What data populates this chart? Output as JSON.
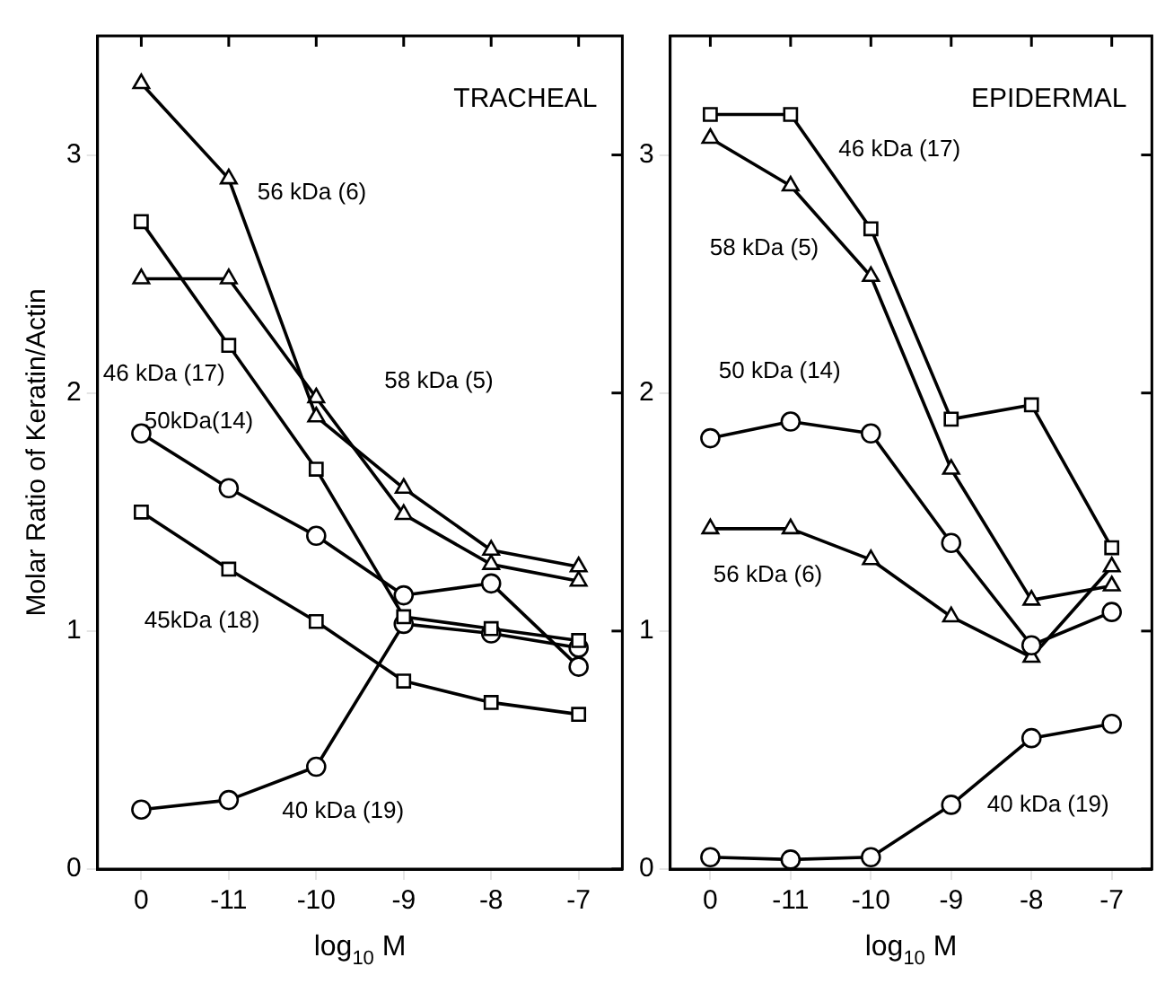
{
  "chart_data": [
    {
      "type": "line",
      "title": "TRACHEAL",
      "xlabel": "log$_{10}$ M",
      "ylabel": "Molar Ratio of Keratin/Actin",
      "categories": [
        "0",
        "-11",
        "-10",
        "-9",
        "-8",
        "-7"
      ],
      "ylim": [
        0,
        3.5
      ],
      "yticks": [
        0,
        1,
        2,
        3
      ],
      "grid": false,
      "legend": false,
      "series": [
        {
          "name": "56 kDa (6)",
          "color": "#000000",
          "marker": "triangle",
          "values": [
            3.3,
            2.9,
            1.9,
            1.6,
            1.34,
            1.27
          ]
        },
        {
          "name": "46 kDa (17)",
          "color": "#000000",
          "marker": "square",
          "values": [
            2.72,
            2.2,
            1.68,
            1.06,
            1.01,
            0.96
          ]
        },
        {
          "name": "58 kDa (5)",
          "color": "#000000",
          "marker": "triangle",
          "values": [
            2.48,
            2.48,
            1.98,
            1.49,
            1.28,
            1.21
          ]
        },
        {
          "name": "50kDa(14)",
          "color": "#000000",
          "marker": "circle",
          "values": [
            1.83,
            1.6,
            1.4,
            1.15,
            1.2,
            0.85
          ]
        },
        {
          "name": "45kDa (18)",
          "color": "#000000",
          "marker": "square",
          "values": [
            1.5,
            1.26,
            1.04,
            0.79,
            0.7,
            0.65
          ]
        },
        {
          "name": "40 kDa (19)",
          "color": "#000000",
          "marker": "circle",
          "values": [
            0.25,
            0.29,
            0.43,
            1.03,
            0.99,
            0.93
          ]
        }
      ]
    },
    {
      "type": "line",
      "title": "EPIDERMAL",
      "xlabel": "log$_{10}$ M",
      "categories": [
        "0",
        "-11",
        "-10",
        "-9",
        "-8",
        "-7"
      ],
      "ylim": [
        0,
        3.5
      ],
      "yticks": [
        0,
        1,
        2,
        3
      ],
      "grid": false,
      "legend": false,
      "series": [
        {
          "name": "46 kDa (17)",
          "color": "#000000",
          "marker": "square",
          "values": [
            3.17,
            3.17,
            2.69,
            1.89,
            1.95,
            1.35
          ]
        },
        {
          "name": "58 kDa (5)",
          "color": "#000000",
          "marker": "triangle",
          "values": [
            3.07,
            2.87,
            2.49,
            1.68,
            1.13,
            1.19
          ]
        },
        {
          "name": "50 kDa (14)",
          "color": "#000000",
          "marker": "circle",
          "values": [
            1.81,
            1.88,
            1.83,
            1.37,
            0.94,
            1.08
          ]
        },
        {
          "name": "56 kDa (6)",
          "color": "#000000",
          "marker": "triangle",
          "values": [
            1.43,
            1.43,
            1.3,
            1.06,
            0.89,
            1.27
          ]
        },
        {
          "name": "40 kDa (19)",
          "color": "#000000",
          "marker": "circle",
          "values": [
            0.05,
            0.04,
            0.05,
            0.27,
            0.55,
            0.61
          ]
        }
      ]
    }
  ]
}
